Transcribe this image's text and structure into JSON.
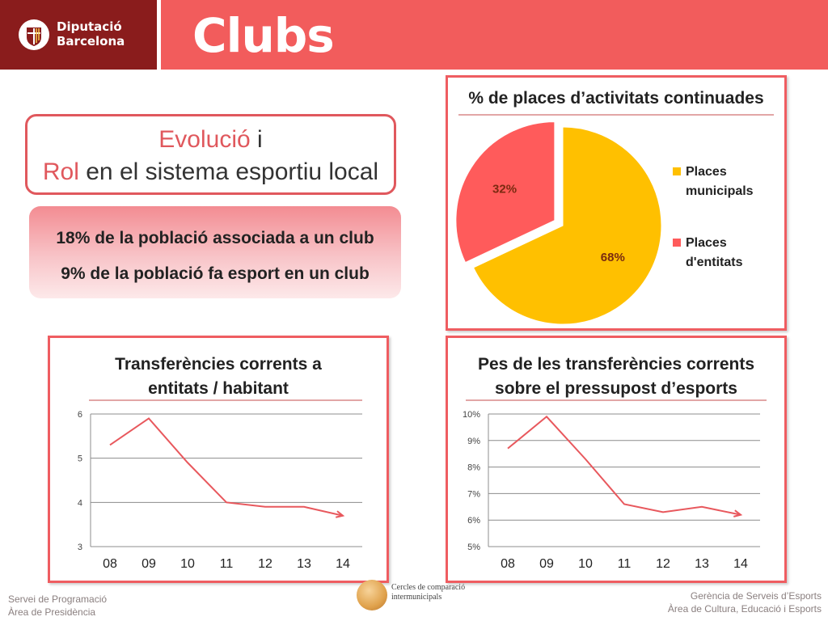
{
  "header": {
    "logo_line1": "Diputació",
    "logo_line2": "Barcelona",
    "title": "Clubs",
    "colors": {
      "logo_bg": "#8a1c1c",
      "band": "#f25c5c"
    }
  },
  "evolution_box": {
    "line1_highlight": "Evolució",
    "line1_rest": " i",
    "line2_highlight": "Rol",
    "line2_rest": " en el sistema esportiu local"
  },
  "stats_box": {
    "line1": "18% de la població associada a un club",
    "line2": "9% de la població fa esport en un club"
  },
  "chart_data": [
    {
      "type": "pie",
      "title": "% de places d’activitats continuades",
      "categories": [
        "Places municipals",
        "Places d'entitats"
      ],
      "values": [
        68,
        32
      ],
      "data_labels": [
        "68%",
        "32%"
      ],
      "colors": [
        "#ffc000",
        "#ff5b5b"
      ],
      "legend_position": "right",
      "legend_items": [
        {
          "label_line1": "Places",
          "label_line2": "municipals"
        },
        {
          "label_line1": "Places",
          "label_line2": "d'entitats"
        }
      ]
    },
    {
      "type": "line",
      "title_line1": "Transferències corrents a",
      "title_line2": "entitats / habitant",
      "categories": [
        "08",
        "09",
        "10",
        "11",
        "12",
        "13",
        "14"
      ],
      "values": [
        5.3,
        5.9,
        4.9,
        4.0,
        3.9,
        3.9,
        3.7
      ],
      "ylim": [
        3,
        6
      ],
      "yticks": [
        "3",
        "4",
        "5",
        "6"
      ],
      "grid": true,
      "color": "#e8585d"
    },
    {
      "type": "line",
      "title_line1": "Pes de les transferències corrents",
      "title_line2": "sobre el pressupost d’esports",
      "categories": [
        "08",
        "09",
        "10",
        "11",
        "12",
        "13",
        "14"
      ],
      "values": [
        8.7,
        9.9,
        8.3,
        6.6,
        6.3,
        6.5,
        6.2
      ],
      "ylim": [
        5,
        10
      ],
      "yticks": [
        "5%",
        "6%",
        "7%",
        "8%",
        "9%",
        "10%"
      ],
      "grid": true,
      "color": "#e8585d"
    }
  ],
  "footer": {
    "left_line1": "Servei de Programació",
    "left_line2": "Àrea de Presidència",
    "center_line1": "Cercles de comparació",
    "center_line2": "intermunicipals",
    "right_line1": "Gerència de Serveis d’Esports",
    "right_line2": "Àrea de Cultura, Educació i Esports"
  }
}
